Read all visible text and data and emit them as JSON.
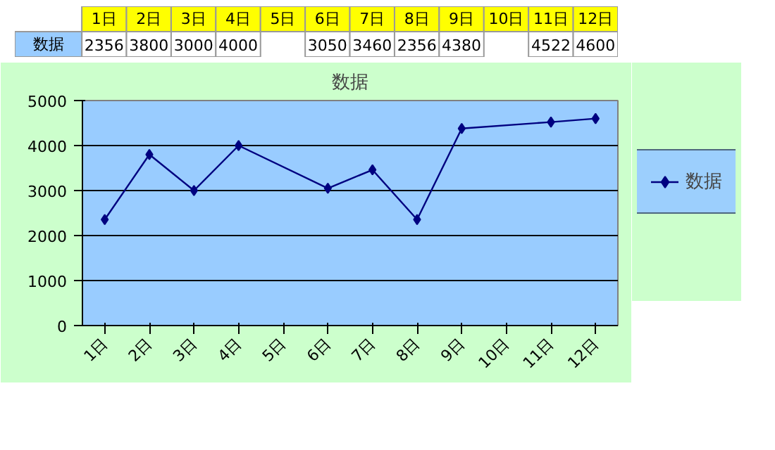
{
  "chart_data": {
    "type": "line",
    "title": "数据",
    "categories": [
      "1日",
      "2日",
      "3日",
      "4日",
      "5日",
      "6日",
      "7日",
      "8日",
      "9日",
      "10日",
      "11日",
      "12日"
    ],
    "series": [
      {
        "name": "数据",
        "color": "#000080",
        "values": [
          2356,
          3800,
          3000,
          4000,
          null,
          3050,
          3460,
          2356,
          4380,
          null,
          4522,
          4600
        ]
      }
    ],
    "ylim": [
      0,
      5000
    ],
    "yticks": [
      0,
      1000,
      2000,
      3000,
      4000,
      5000
    ],
    "grid": "y",
    "legend": "right",
    "marker": "diamond",
    "data_labels": true
  }
}
